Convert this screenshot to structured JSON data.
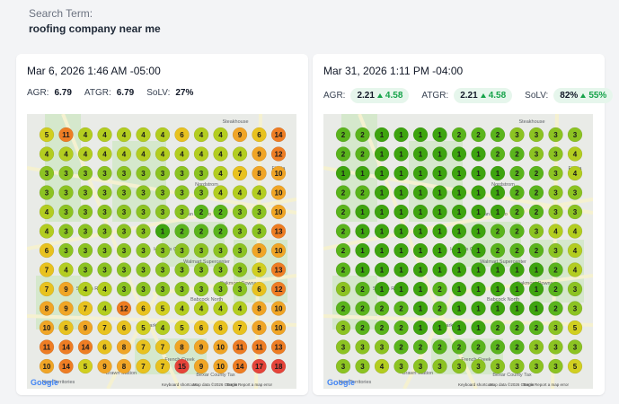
{
  "header": {
    "label": "Search Term:",
    "value": "roofing company near me"
  },
  "map_labels": [
    "Steakhouse",
    "Nordstrom",
    "Fiesta",
    "San Antonio",
    "Hunter's Chase",
    "Walmart Supercenter",
    "Oakmont Downs",
    "Babcock North",
    "Stanton Run",
    "Parkwood",
    "French Creek",
    "Bexar County Tax",
    "New Territories",
    "Brawn Station"
  ],
  "map_footer": {
    "logo": "Google",
    "shortcuts": "Keyboard shortcuts",
    "data": "Map data ©2026 Google",
    "terms": "Terms",
    "report": "Report a map error"
  },
  "cards": [
    {
      "date": "Mar 6, 2026 1:46 AM -05:00",
      "metrics": [
        {
          "label": "AGR:",
          "value": "6.79"
        },
        {
          "label": "ATGR:",
          "value": "6.79"
        },
        {
          "label": "SoLV:",
          "value": "27%"
        }
      ],
      "grid": [
        [
          5,
          11,
          4,
          4,
          4,
          4,
          4,
          6,
          4,
          4,
          9,
          6,
          14
        ],
        [
          4,
          4,
          4,
          4,
          4,
          4,
          4,
          4,
          4,
          4,
          4,
          9,
          12
        ],
        [
          3,
          3,
          3,
          3,
          3,
          3,
          3,
          3,
          3,
          4,
          7,
          8,
          10
        ],
        [
          3,
          3,
          3,
          3,
          3,
          3,
          3,
          3,
          3,
          4,
          4,
          4,
          10
        ],
        [
          4,
          3,
          3,
          3,
          3,
          3,
          3,
          3,
          2,
          2,
          3,
          3,
          10
        ],
        [
          4,
          3,
          3,
          3,
          3,
          3,
          1,
          2,
          2,
          2,
          3,
          3,
          13
        ],
        [
          6,
          3,
          3,
          3,
          3,
          3,
          3,
          3,
          3,
          3,
          3,
          9,
          10
        ],
        [
          7,
          4,
          3,
          3,
          3,
          3,
          3,
          3,
          3,
          3,
          3,
          5,
          13
        ],
        [
          7,
          9,
          4,
          4,
          3,
          3,
          3,
          3,
          3,
          3,
          3,
          6,
          12
        ],
        [
          8,
          9,
          7,
          4,
          12,
          6,
          5,
          4,
          4,
          4,
          4,
          8,
          10
        ],
        [
          10,
          6,
          9,
          7,
          6,
          5,
          4,
          5,
          6,
          6,
          7,
          8,
          10
        ],
        [
          11,
          14,
          14,
          6,
          8,
          7,
          7,
          8,
          9,
          10,
          11,
          11,
          13
        ],
        [
          10,
          14,
          5,
          9,
          8,
          7,
          7,
          15,
          9,
          10,
          14,
          17,
          18
        ]
      ]
    },
    {
      "date": "Mar 31, 2026 1:11 PM -04:00",
      "metrics": [
        {
          "label": "AGR:",
          "value": "2.21",
          "change": "4.58"
        },
        {
          "label": "ATGR:",
          "value": "2.21",
          "change": "4.58"
        },
        {
          "label": "SoLV:",
          "value": "82%",
          "change": "55%"
        }
      ],
      "grid": [
        [
          2,
          2,
          1,
          1,
          1,
          1,
          2,
          2,
          2,
          3,
          3,
          3,
          3
        ],
        [
          2,
          2,
          1,
          1,
          1,
          1,
          1,
          1,
          2,
          2,
          3,
          3,
          4
        ],
        [
          1,
          1,
          1,
          1,
          1,
          1,
          1,
          1,
          1,
          2,
          2,
          3,
          4
        ],
        [
          2,
          2,
          1,
          1,
          1,
          1,
          1,
          1,
          1,
          2,
          2,
          3,
          3
        ],
        [
          2,
          1,
          1,
          1,
          1,
          1,
          1,
          1,
          1,
          2,
          2,
          3,
          3
        ],
        [
          2,
          1,
          1,
          1,
          1,
          1,
          1,
          1,
          2,
          2,
          3,
          4,
          4
        ],
        [
          2,
          1,
          1,
          1,
          1,
          1,
          1,
          1,
          2,
          2,
          2,
          3,
          4
        ],
        [
          2,
          1,
          1,
          1,
          1,
          1,
          1,
          1,
          1,
          1,
          1,
          2,
          4
        ],
        [
          3,
          2,
          1,
          1,
          1,
          2,
          1,
          1,
          1,
          1,
          1,
          2,
          3
        ],
        [
          2,
          2,
          2,
          2,
          1,
          2,
          1,
          1,
          1,
          1,
          1,
          2,
          3
        ],
        [
          3,
          2,
          2,
          2,
          1,
          1,
          1,
          1,
          2,
          2,
          2,
          3,
          5
        ],
        [
          3,
          3,
          3,
          2,
          2,
          2,
          2,
          2,
          2,
          2,
          3,
          3,
          3
        ],
        [
          3,
          3,
          4,
          3,
          3,
          3,
          3,
          3,
          3,
          3,
          3,
          3,
          5
        ]
      ]
    }
  ]
}
